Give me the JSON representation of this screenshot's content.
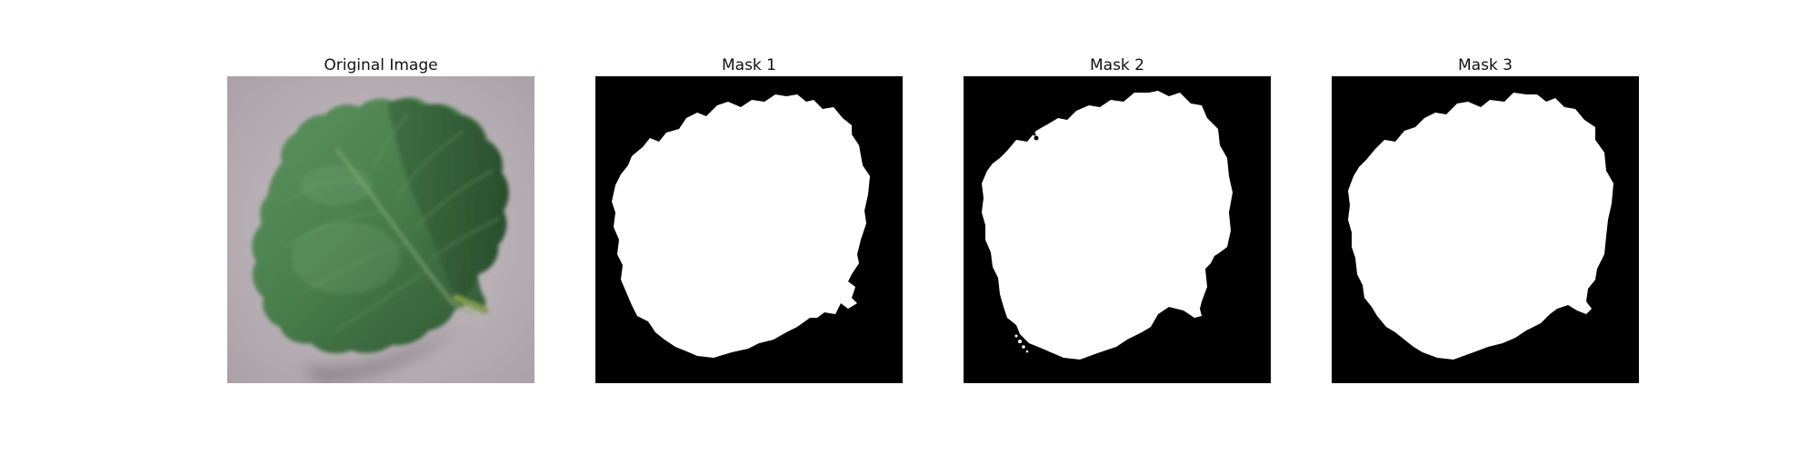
{
  "panels": [
    {
      "title": "Original Image"
    },
    {
      "title": "Mask 1"
    },
    {
      "title": "Mask 2"
    },
    {
      "title": "Mask 3"
    }
  ],
  "colors": {
    "background_photo": "#b9b1b7",
    "leaf_dark": "#2f5a33",
    "leaf_mid": "#4e8452",
    "leaf_light": "#79a673",
    "mask_background": "#000000",
    "mask_foreground": "#ffffff"
  }
}
